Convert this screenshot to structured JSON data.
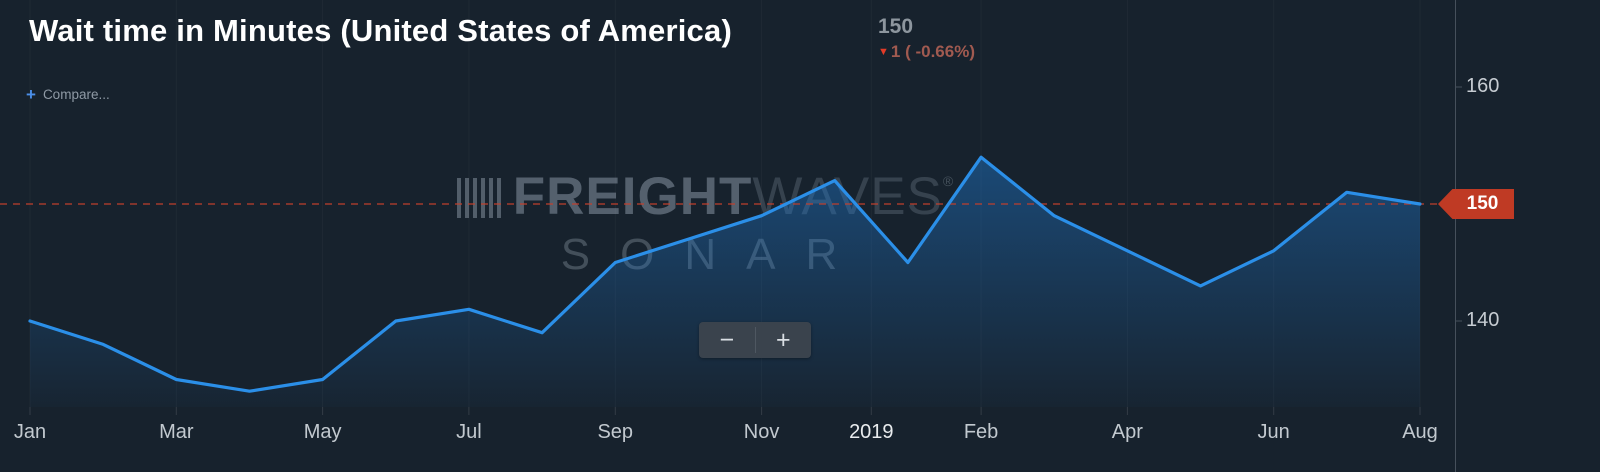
{
  "header": {
    "title": "Wait time in Minutes (United States of America)",
    "last_value": "150",
    "change_arrow": "▼",
    "change_text": "1 ( -0.66%)"
  },
  "compare": {
    "plus_icon": "+",
    "label": "Compare..."
  },
  "watermark": {
    "brand_strong": "FREIGHT",
    "brand_light": "WAVES",
    "reg_mark": "®",
    "subtitle": "SONAR"
  },
  "zoom": {
    "minus_label": "−",
    "plus_label": "+"
  },
  "axis": {
    "current_badge": "150",
    "y_ticks": [
      {
        "label": "160",
        "value": 160
      },
      {
        "label": "140",
        "value": 140
      }
    ],
    "x_ticks": [
      {
        "label": "Jan",
        "i": 0
      },
      {
        "label": "Mar",
        "i": 2
      },
      {
        "label": "May",
        "i": 4
      },
      {
        "label": "Jul",
        "i": 6
      },
      {
        "label": "Sep",
        "i": 8
      },
      {
        "label": "Nov",
        "i": 10
      },
      {
        "label": "2019",
        "i": 11.5,
        "year": true
      },
      {
        "label": "Feb",
        "i": 13
      },
      {
        "label": "Apr",
        "i": 15
      },
      {
        "label": "Jun",
        "i": 17
      },
      {
        "label": "Aug",
        "i": 19
      }
    ]
  },
  "chart_data": {
    "type": "area",
    "title": "Wait time in Minutes (United States of America)",
    "x": [
      "Jan 2018",
      "Feb 2018",
      "Mar 2018",
      "Apr 2018",
      "May 2018",
      "Jun 2018",
      "Jul 2018",
      "Aug 2018",
      "Sep 2018",
      "Oct 2018",
      "Nov 2018",
      "Dec 2018",
      "Jan 2019",
      "Feb 2019",
      "Mar 2019",
      "Apr 2019",
      "May 2019",
      "Jun 2019",
      "Jul 2019",
      "Aug 2019"
    ],
    "values": [
      140,
      138,
      135,
      134,
      135,
      140,
      141,
      139,
      145,
      147,
      149,
      152,
      145,
      154,
      149,
      146,
      143,
      146,
      151,
      150
    ],
    "xlabel": "",
    "ylabel": "",
    "ylim": [
      131,
      162
    ],
    "y_tick_values": [
      140,
      150,
      160
    ],
    "reference_line": 150,
    "current_value": 150,
    "change": -1,
    "change_pct": -0.66,
    "legend": false,
    "grid": false,
    "line_color": "#2b8fe8",
    "reference_color": "#c6402c",
    "badge_color": "#bf3a24"
  }
}
